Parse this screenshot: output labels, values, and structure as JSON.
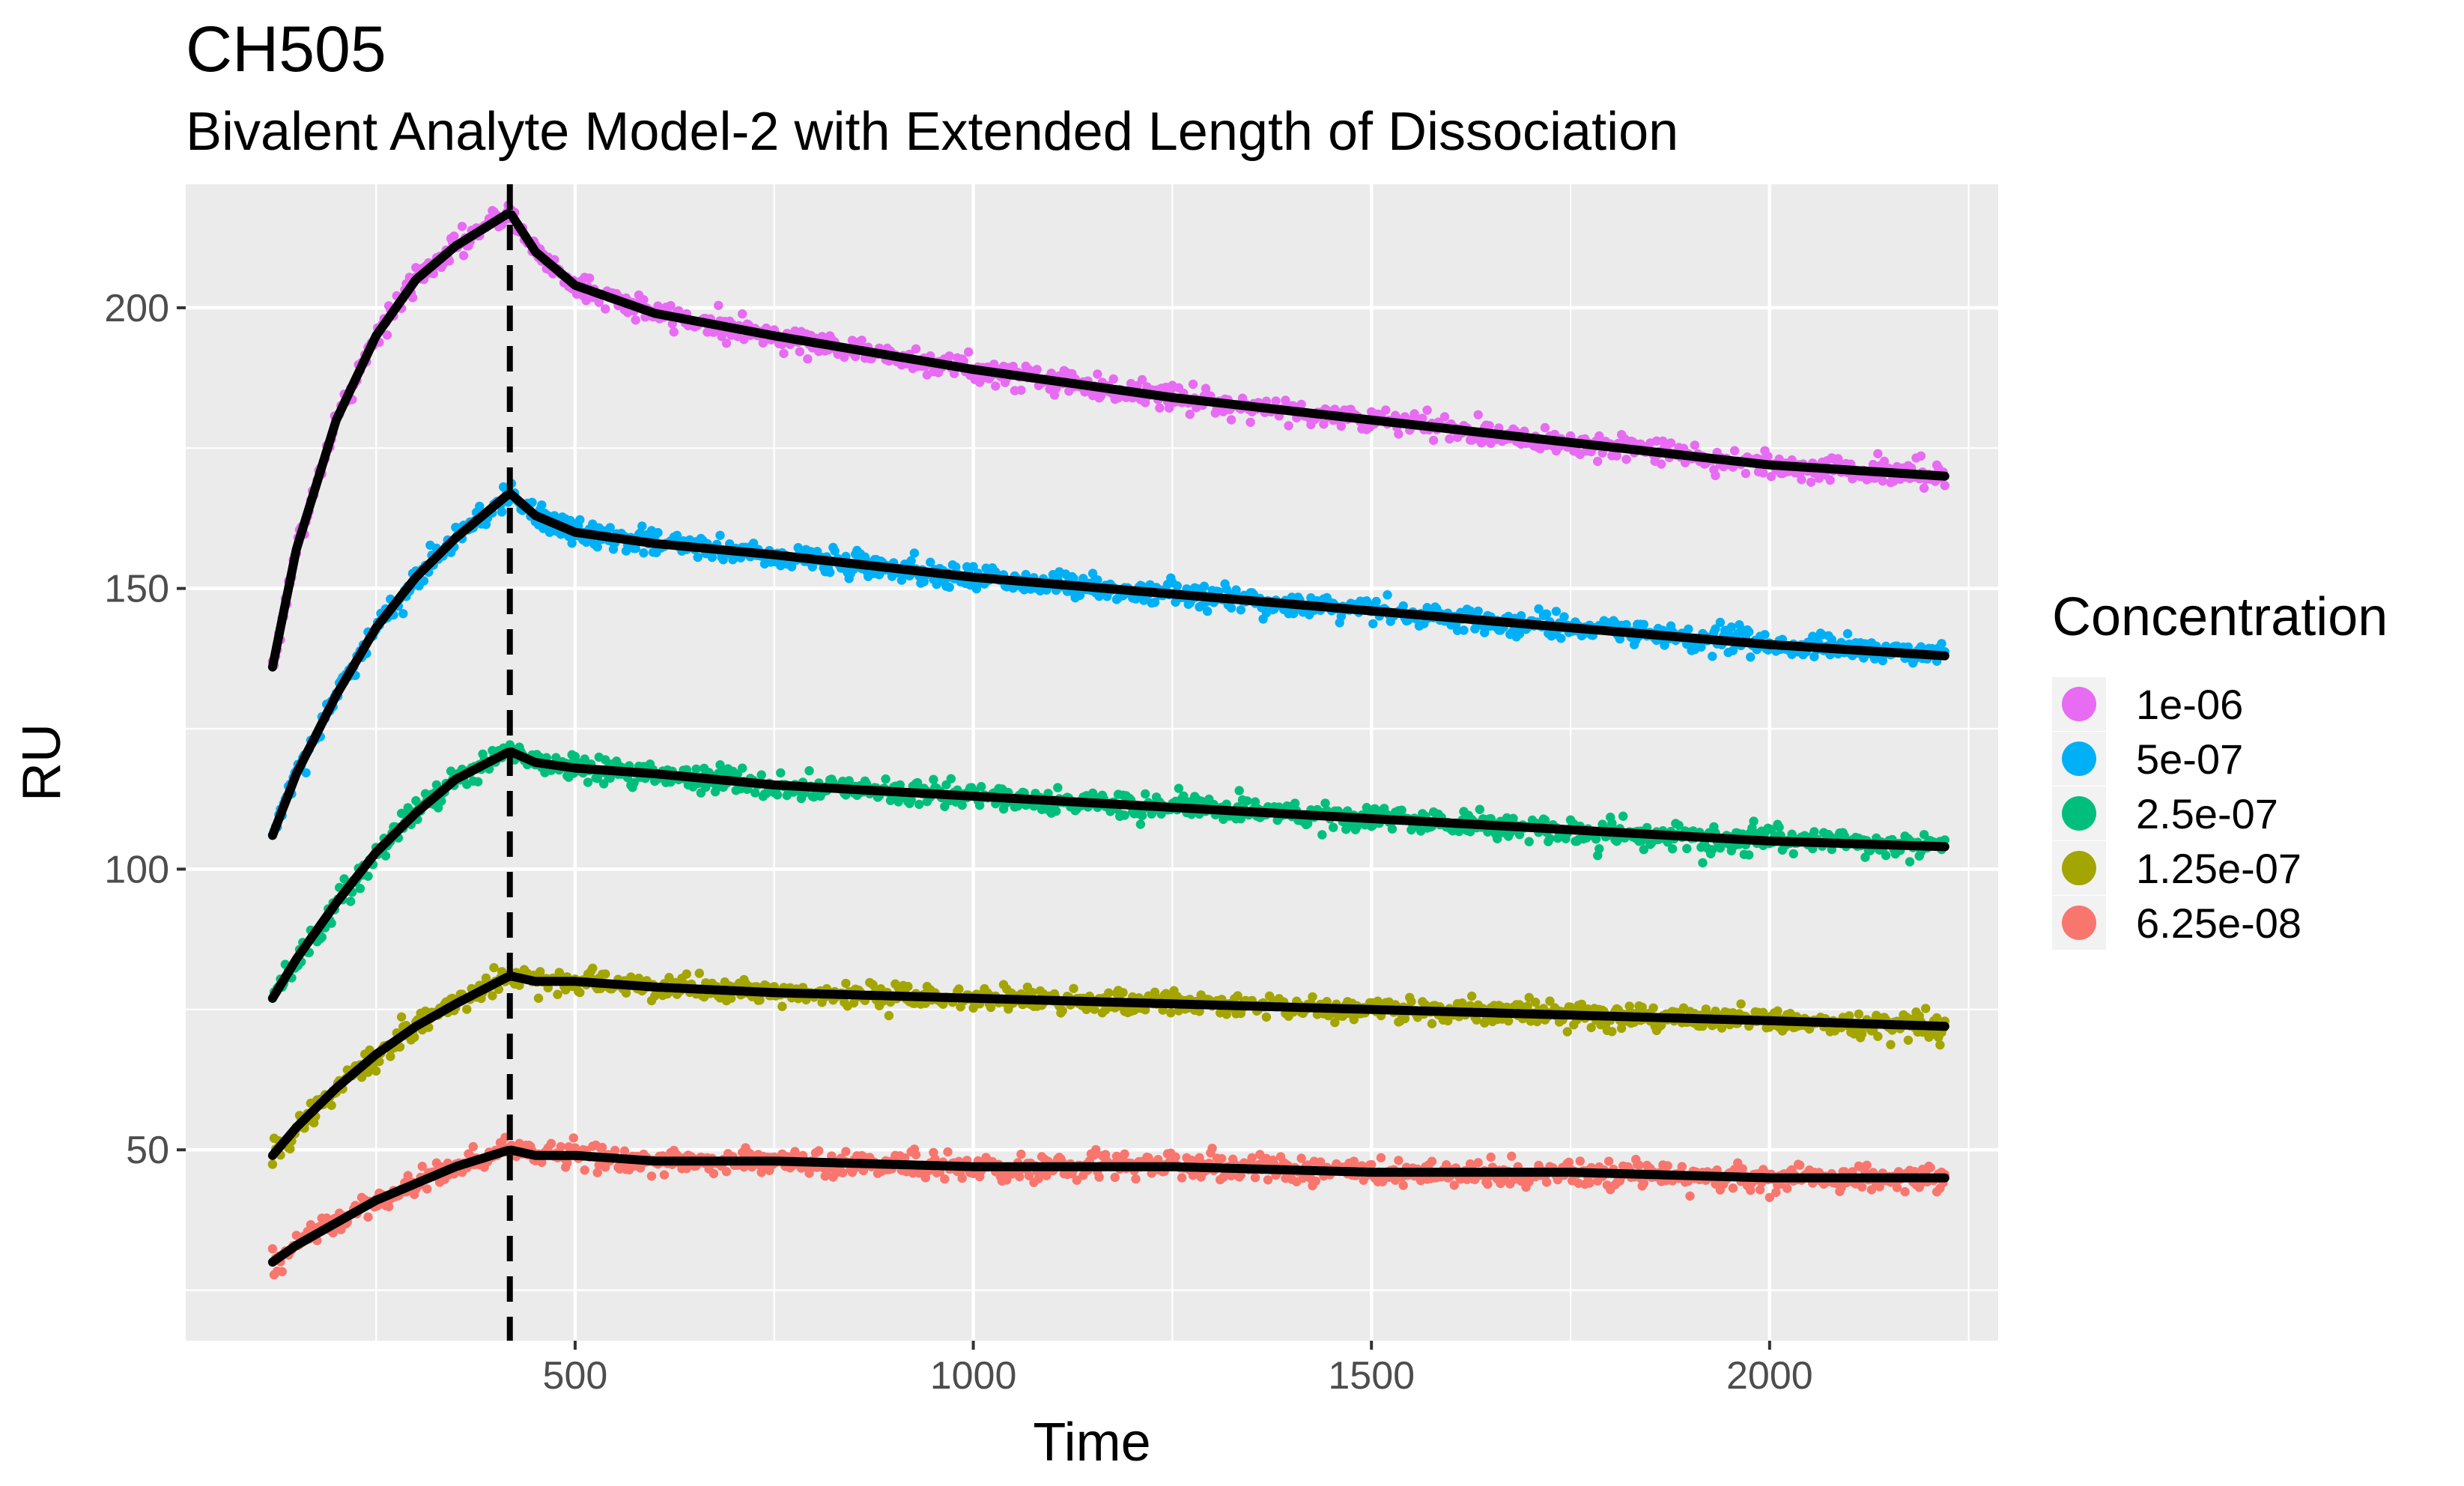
{
  "chart_data": {
    "type": "scatter",
    "title": "CH505",
    "subtitle": "Bivalent Analyte Model-2 with Extended Length of Dissociation",
    "xlabel": "Time",
    "ylabel": "RU",
    "xlim": [
      11,
      2287
    ],
    "ylim": [
      16,
      222
    ],
    "x_ticks": [
      250,
      500,
      750,
      1000,
      1250,
      1500,
      1750,
      2000,
      2250
    ],
    "x_tick_labels": [
      "500",
      "1000",
      "1500",
      "2000"
    ],
    "x_tick_label_values": [
      500,
      1000,
      1500,
      2000
    ],
    "y_ticks": [
      25,
      50,
      75,
      100,
      125,
      150,
      175,
      200
    ],
    "y_tick_labels": [
      "50",
      "100",
      "150",
      "200"
    ],
    "y_tick_label_values": [
      50,
      100,
      150,
      200
    ],
    "grid": true,
    "injection_end_time": 418,
    "time_start": 120,
    "time_end": 2220,
    "legend": {
      "title": "Concentration",
      "position": "right"
    },
    "fit_color": "#000000",
    "series": [
      {
        "name": "1e-06",
        "color": "#E76BF3",
        "x": [
          120,
          150,
          200,
          250,
          300,
          350,
          418,
          450,
          500,
          600,
          750,
          1000,
          1250,
          1500,
          1750,
          2000,
          2220
        ],
        "fit": [
          136,
          157,
          180,
          195,
          205,
          211,
          217,
          210,
          204,
          199,
          195,
          189,
          184,
          180,
          176,
          172,
          170
        ]
      },
      {
        "name": "5e-07",
        "color": "#00B0F6",
        "x": [
          120,
          150,
          200,
          250,
          300,
          350,
          418,
          450,
          500,
          600,
          750,
          1000,
          1250,
          1500,
          1750,
          2000,
          2220
        ],
        "fit": [
          106,
          117,
          131,
          143,
          152,
          159,
          167,
          163,
          160,
          158,
          156,
          152,
          149,
          146,
          143,
          140,
          138
        ]
      },
      {
        "name": "2.5e-07",
        "color": "#00BF7D",
        "x": [
          120,
          150,
          200,
          250,
          300,
          350,
          418,
          450,
          500,
          600,
          750,
          1000,
          1250,
          1500,
          1750,
          2000,
          2220
        ],
        "fit": [
          77,
          84,
          94,
          103,
          110,
          116,
          121,
          119,
          118,
          117,
          115,
          113,
          111,
          109,
          107,
          105,
          104
        ]
      },
      {
        "name": "1.25e-07",
        "color": "#A3A500",
        "x": [
          120,
          150,
          200,
          250,
          300,
          350,
          418,
          450,
          500,
          600,
          750,
          1000,
          1250,
          1500,
          1750,
          2000,
          2220
        ],
        "fit": [
          49,
          54,
          61,
          67,
          72,
          76,
          81,
          80,
          80,
          79,
          78,
          77,
          76,
          75,
          74,
          73,
          72
        ]
      },
      {
        "name": "6.25e-08",
        "color": "#F8766D",
        "x": [
          120,
          150,
          200,
          250,
          300,
          350,
          418,
          450,
          500,
          600,
          750,
          1000,
          1250,
          1500,
          1750,
          2000,
          2220
        ],
        "fit": [
          30,
          33,
          37,
          41,
          44,
          47,
          50,
          49,
          49,
          48,
          48,
          47,
          47,
          46,
          46,
          45,
          45
        ]
      }
    ]
  }
}
